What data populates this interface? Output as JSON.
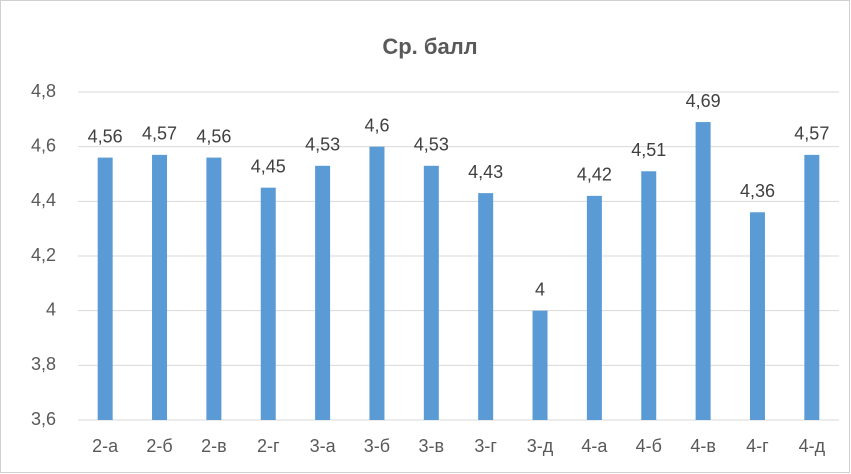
{
  "chart_data": {
    "type": "bar",
    "title": "Ср. балл",
    "categories": [
      "2-а",
      "2-б",
      "2-в",
      "2-г",
      "3-а",
      "3-б",
      "3-в",
      "3-г",
      "3-д",
      "4-а",
      "4-б",
      "4-в",
      "4-г",
      "4-д"
    ],
    "values": [
      4.56,
      4.57,
      4.56,
      4.45,
      4.53,
      4.6,
      4.53,
      4.43,
      4,
      4.42,
      4.51,
      4.69,
      4.36,
      4.57
    ],
    "value_labels": [
      "4,56",
      "4,57",
      "4,56",
      "4,45",
      "4,53",
      "4,6",
      "4,53",
      "4,43",
      "4",
      "4,42",
      "4,51",
      "4,69",
      "4,36",
      "4,57"
    ],
    "color": "#5b9bd5",
    "ylim": [
      3.6,
      4.8
    ],
    "yticks": [
      {
        "value": 3.6,
        "label": "3,6"
      },
      {
        "value": 3.8,
        "label": "3,8"
      },
      4,
      {
        "value": 4.2,
        "label": "4,2"
      },
      {
        "value": 4.4,
        "label": "4,4"
      },
      {
        "value": 4.6,
        "label": "4,6"
      },
      {
        "value": 4.8,
        "label": "4,8"
      }
    ],
    "grid": true
  }
}
